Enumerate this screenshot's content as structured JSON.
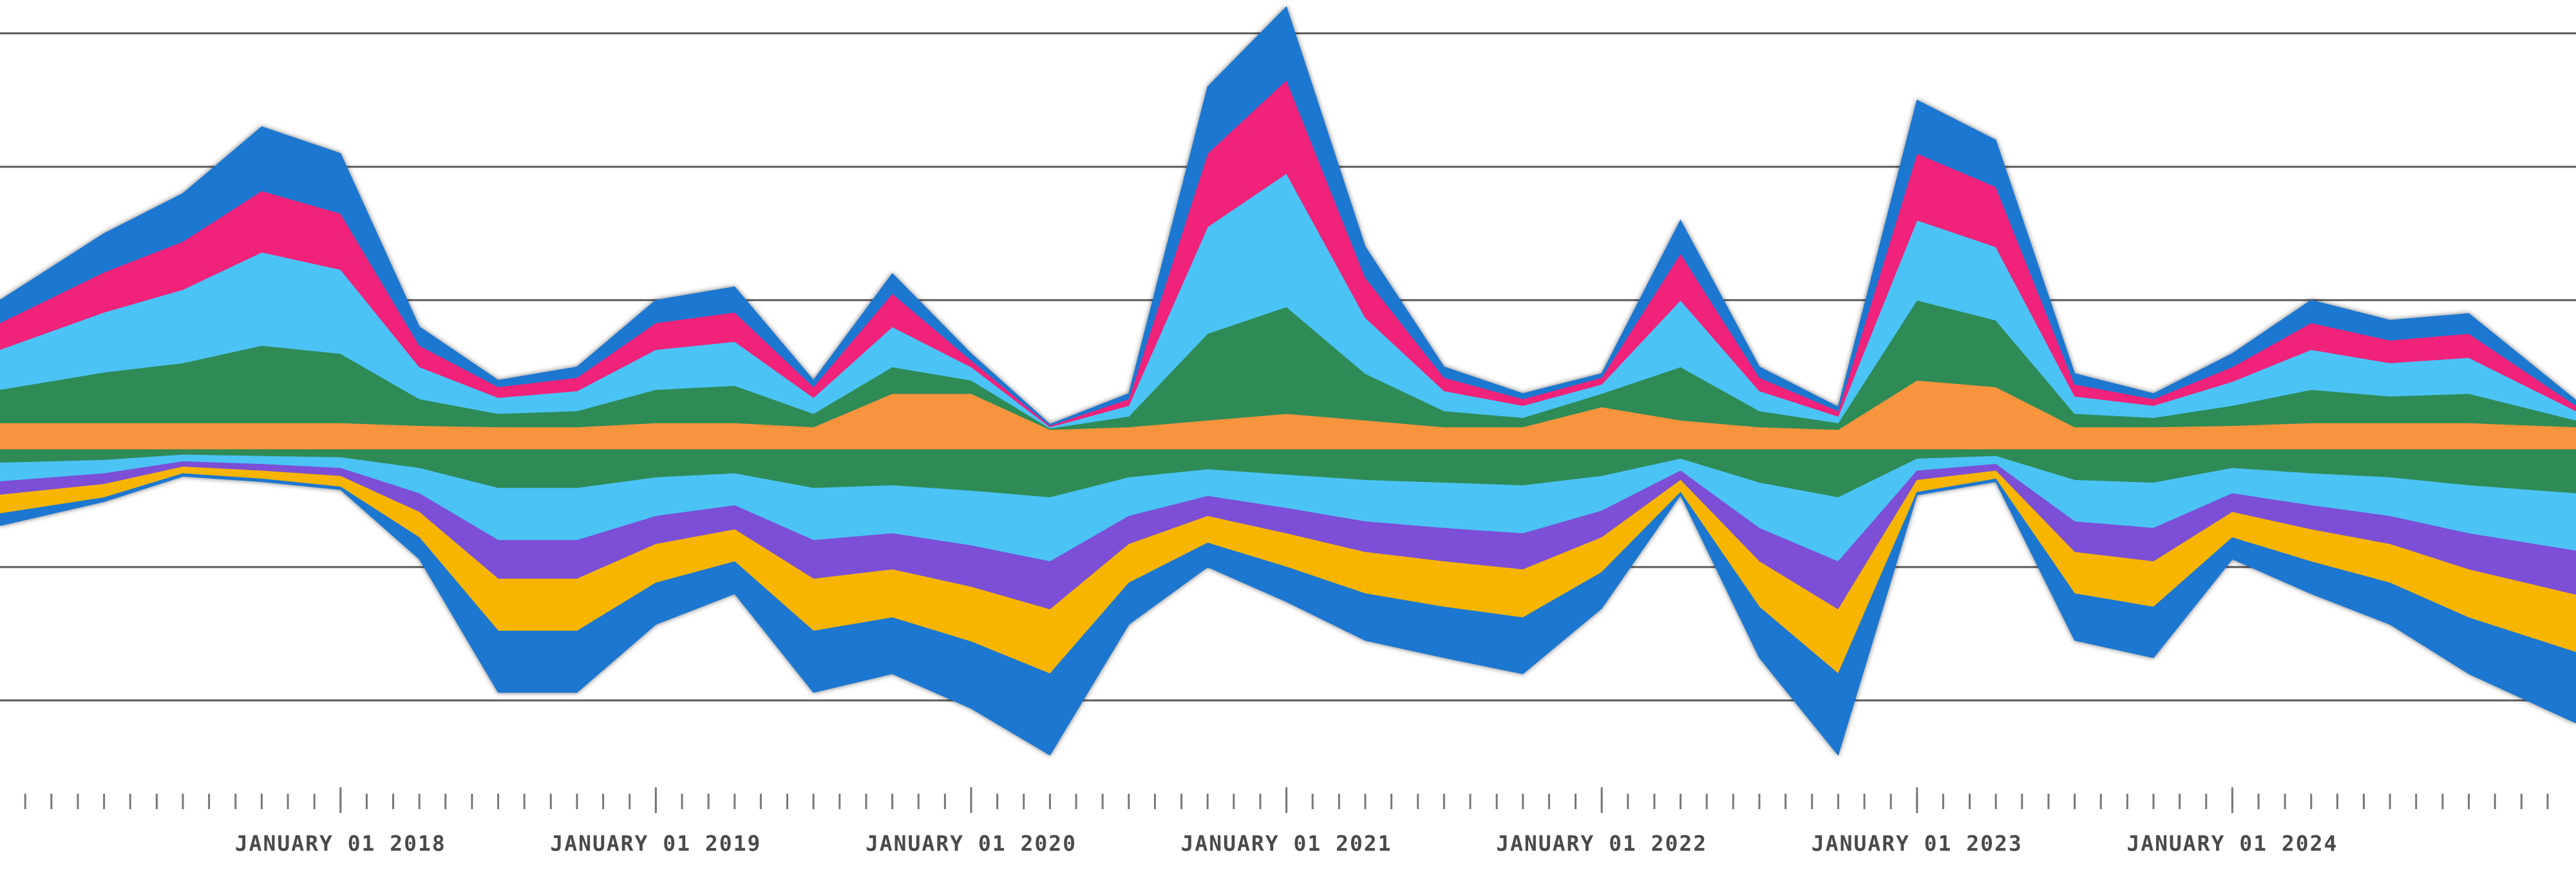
{
  "chart_data": {
    "type": "stream",
    "x": [
      2016.92,
      2017.25,
      2017.5,
      2017.75,
      2018.0,
      2018.25,
      2018.5,
      2018.75,
      2019.0,
      2019.25,
      2019.5,
      2019.75,
      2020.0,
      2020.25,
      2020.5,
      2020.75,
      2021.0,
      2021.25,
      2021.5,
      2021.75,
      2022.0,
      2022.25,
      2022.5,
      2022.75,
      2023.0,
      2023.25,
      2023.5,
      2023.75,
      2024.0,
      2024.25,
      2024.5,
      2024.75,
      2025.09
    ],
    "xlim": [
      2016.92,
      2025.09
    ],
    "xticks": [
      {
        "value": 2018,
        "label": "JANUARY 01 2018"
      },
      {
        "value": 2019,
        "label": "JANUARY 01 2019"
      },
      {
        "value": 2020,
        "label": "JANUARY 01 2020"
      },
      {
        "value": 2021,
        "label": "JANUARY 01 2021"
      },
      {
        "value": 2022,
        "label": "JANUARY 01 2022"
      },
      {
        "value": 2023,
        "label": "JANUARY 01 2023"
      },
      {
        "value": 2024,
        "label": "JANUARY 01 2024"
      }
    ],
    "xminorticks": [
      2017,
      2017.083,
      2017.167,
      2017.25,
      2017.333,
      2017.417,
      2017.5,
      2017.583,
      2017.667,
      2017.75,
      2017.833,
      2017.917,
      2018,
      2018.083,
      2018.167,
      2018.25,
      2018.333,
      2018.417,
      2018.5,
      2018.583,
      2018.667,
      2018.75,
      2018.833,
      2018.917,
      2019,
      2019.083,
      2019.167,
      2019.25,
      2019.333,
      2019.417,
      2019.5,
      2019.583,
      2019.667,
      2019.75,
      2019.833,
      2019.917,
      2020,
      2020.083,
      2020.167,
      2020.25,
      2020.333,
      2020.417,
      2020.5,
      2020.583,
      2020.667,
      2020.75,
      2020.833,
      2020.917,
      2021,
      2021.083,
      2021.167,
      2021.25,
      2021.333,
      2021.417,
      2021.5,
      2021.583,
      2021.667,
      2021.75,
      2021.833,
      2021.917,
      2022,
      2022.083,
      2022.167,
      2022.25,
      2022.333,
      2022.417,
      2022.5,
      2022.583,
      2022.667,
      2022.75,
      2022.833,
      2022.917,
      2023,
      2023.083,
      2023.167,
      2023.25,
      2023.333,
      2023.417,
      2023.5,
      2023.583,
      2023.667,
      2023.75,
      2023.833,
      2023.917,
      2024,
      2024.083,
      2024.167,
      2024.25,
      2024.333,
      2024.417,
      2024.5,
      2024.583,
      2024.667,
      2024.75,
      2024.833,
      2024.917,
      2025
    ],
    "ylim": [
      -2.54,
      3.25
    ],
    "yticks": [
      -2,
      -1,
      0,
      1,
      2,
      3
    ],
    "grid": true,
    "series": [
      {
        "color": "#f7943c",
        "values": [
          0.08,
          0.08,
          0.08,
          0.08,
          0.08,
          0.06,
          0.05,
          0.05,
          0.08,
          0.08,
          0.05,
          0.3,
          0.3,
          0.03,
          0.05,
          0.1,
          0.15,
          0.1,
          0.05,
          0.05,
          0.2,
          0.1,
          0.05,
          0.03,
          0.4,
          0.35,
          0.05,
          0.05,
          0.06,
          0.08,
          0.08,
          0.08,
          0.05
        ]
      },
      {
        "color": "#2e8b57",
        "values": [
          0.25,
          0.38,
          0.45,
          0.58,
          0.52,
          0.2,
          0.1,
          0.12,
          0.25,
          0.28,
          0.1,
          0.2,
          0.1,
          0.01,
          0.08,
          0.65,
          0.8,
          0.35,
          0.12,
          0.07,
          0.1,
          0.4,
          0.12,
          0.05,
          0.6,
          0.5,
          0.1,
          0.07,
          0.15,
          0.25,
          0.2,
          0.22,
          0.05
        ]
      },
      {
        "color": "#4cc3f5",
        "values": [
          0.3,
          0.45,
          0.55,
          0.7,
          0.63,
          0.24,
          0.12,
          0.15,
          0.3,
          0.33,
          0.12,
          0.3,
          0.1,
          0.01,
          0.08,
          0.8,
          1.0,
          0.42,
          0.15,
          0.09,
          0.07,
          0.5,
          0.15,
          0.05,
          0.6,
          0.55,
          0.13,
          0.09,
          0.18,
          0.3,
          0.25,
          0.27,
          0.07
        ]
      },
      {
        "color": "#f0207a",
        "values": [
          0.2,
          0.3,
          0.36,
          0.46,
          0.42,
          0.16,
          0.08,
          0.1,
          0.2,
          0.22,
          0.08,
          0.25,
          0.05,
          0.01,
          0.05,
          0.55,
          0.7,
          0.3,
          0.1,
          0.05,
          0.05,
          0.35,
          0.1,
          0.04,
          0.5,
          0.45,
          0.09,
          0.05,
          0.11,
          0.2,
          0.17,
          0.18,
          0.04
        ]
      },
      {
        "color": "#1f77d0",
        "values": [
          0.17,
          0.29,
          0.36,
          0.48,
          0.45,
          0.14,
          0.05,
          0.08,
          0.17,
          0.19,
          0.05,
          0.15,
          0.05,
          0.01,
          0.04,
          0.5,
          0.55,
          0.23,
          0.08,
          0.04,
          0.03,
          0.25,
          0.08,
          0.03,
          0.4,
          0.35,
          0.08,
          0.04,
          0.1,
          0.17,
          0.15,
          0.15,
          0.04
        ]
      },
      {
        "color": "#f7943c",
        "values": [
          -0.12,
          -0.12,
          -0.12,
          -0.12,
          -0.12,
          -0.12,
          -0.12,
          -0.12,
          -0.12,
          -0.12,
          -0.12,
          -0.12,
          -0.12,
          -0.12,
          -0.12,
          -0.12,
          -0.12,
          -0.12,
          -0.12,
          -0.12,
          -0.12,
          -0.12,
          -0.12,
          -0.12,
          -0.12,
          -0.12,
          -0.12,
          -0.12,
          -0.12,
          -0.12,
          -0.12,
          -0.12,
          -0.12
        ]
      },
      {
        "color": "#2e8b57",
        "values": [
          -0.1,
          -0.08,
          -0.04,
          -0.05,
          -0.06,
          -0.14,
          -0.29,
          -0.29,
          -0.21,
          -0.18,
          -0.29,
          -0.27,
          -0.31,
          -0.36,
          -0.21,
          -0.15,
          -0.19,
          -0.23,
          -0.25,
          -0.27,
          -0.2,
          -0.07,
          -0.25,
          -0.36,
          -0.07,
          -0.05,
          -0.23,
          -0.25,
          -0.14,
          -0.18,
          -0.21,
          -0.27,
          -0.33
        ]
      },
      {
        "color": "#4cc3f5",
        "values": [
          -0.14,
          -0.1,
          -0.05,
          -0.06,
          -0.08,
          -0.19,
          -0.39,
          -0.39,
          -0.29,
          -0.24,
          -0.39,
          -0.36,
          -0.41,
          -0.48,
          -0.29,
          -0.2,
          -0.25,
          -0.31,
          -0.34,
          -0.36,
          -0.26,
          -0.09,
          -0.34,
          -0.48,
          -0.09,
          -0.06,
          -0.31,
          -0.34,
          -0.19,
          -0.24,
          -0.29,
          -0.36,
          -0.43
        ]
      },
      {
        "color": "#7b4fd6",
        "values": [
          -0.1,
          -0.08,
          -0.04,
          -0.05,
          -0.06,
          -0.14,
          -0.29,
          -0.29,
          -0.21,
          -0.18,
          -0.29,
          -0.27,
          -0.31,
          -0.36,
          -0.21,
          -0.15,
          -0.19,
          -0.23,
          -0.25,
          -0.27,
          -0.2,
          -0.07,
          -0.25,
          -0.36,
          -0.07,
          -0.05,
          -0.23,
          -0.25,
          -0.14,
          -0.18,
          -0.21,
          -0.27,
          -0.33
        ]
      },
      {
        "color": "#f7b500",
        "values": [
          -0.14,
          -0.1,
          -0.05,
          -0.06,
          -0.08,
          -0.19,
          -0.39,
          -0.39,
          -0.29,
          -0.24,
          -0.39,
          -0.36,
          -0.41,
          -0.48,
          -0.29,
          -0.2,
          -0.25,
          -0.31,
          -0.34,
          -0.36,
          -0.26,
          -0.09,
          -0.34,
          -0.48,
          -0.09,
          -0.06,
          -0.31,
          -0.34,
          -0.19,
          -0.24,
          -0.29,
          -0.36,
          -0.43
        ]
      },
      {
        "color": "#1f77d0",
        "values": [
          -0.09,
          -0.03,
          -0.02,
          -0.02,
          -0.02,
          -0.16,
          -0.46,
          -0.46,
          -0.31,
          -0.24,
          -0.46,
          -0.42,
          -0.5,
          -0.61,
          -0.31,
          -0.18,
          -0.26,
          -0.35,
          -0.38,
          -0.42,
          -0.27,
          -0.02,
          -0.38,
          -0.61,
          -0.02,
          -0.02,
          -0.35,
          -0.38,
          -0.16,
          -0.24,
          -0.31,
          -0.42,
          -0.53
        ]
      }
    ]
  }
}
